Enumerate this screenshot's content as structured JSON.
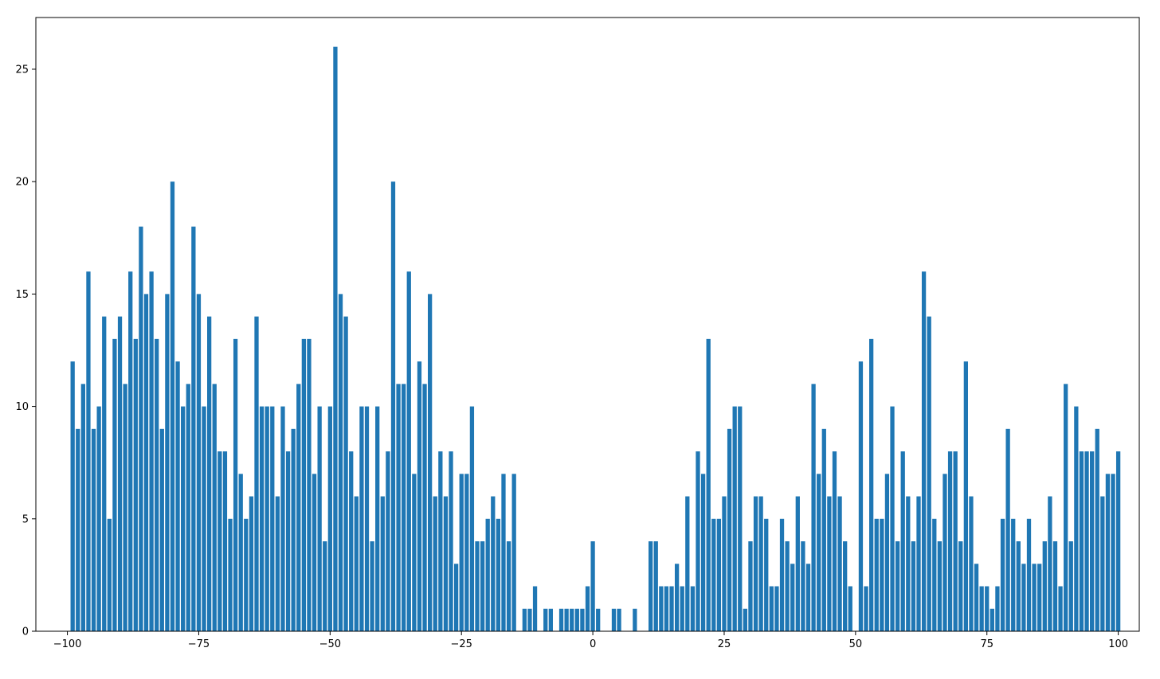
{
  "chart_data": {
    "type": "bar",
    "title": "",
    "xlabel": "",
    "ylabel": "",
    "bar_color": "#1f77b4",
    "xlim": [
      -106,
      104
    ],
    "ylim": [
      0,
      27.3
    ],
    "grid": false,
    "x_ticks": [
      {
        "value": -100,
        "label": "−100"
      },
      {
        "value": -75,
        "label": "−75"
      },
      {
        "value": -50,
        "label": "−50"
      },
      {
        "value": -25,
        "label": "−25"
      },
      {
        "value": 0,
        "label": "0"
      },
      {
        "value": 25,
        "label": "25"
      },
      {
        "value": 50,
        "label": "50"
      },
      {
        "value": 75,
        "label": "75"
      },
      {
        "value": 100,
        "label": "100"
      }
    ],
    "y_ticks": [
      {
        "value": 0,
        "label": "0"
      },
      {
        "value": 5,
        "label": "5"
      },
      {
        "value": 10,
        "label": "10"
      },
      {
        "value": 15,
        "label": "15"
      },
      {
        "value": 20,
        "label": "20"
      },
      {
        "value": 25,
        "label": "25"
      }
    ],
    "x_start": -99,
    "values": [
      12,
      9,
      11,
      16,
      9,
      10,
      14,
      5,
      13,
      14,
      11,
      16,
      13,
      18,
      15,
      16,
      13,
      9,
      15,
      20,
      12,
      10,
      11,
      18,
      15,
      10,
      14,
      11,
      8,
      8,
      5,
      13,
      7,
      5,
      6,
      14,
      10,
      10,
      10,
      6,
      10,
      8,
      9,
      11,
      13,
      13,
      7,
      10,
      4,
      10,
      26,
      15,
      14,
      8,
      6,
      10,
      10,
      4,
      10,
      6,
      8,
      20,
      11,
      11,
      16,
      7,
      12,
      11,
      15,
      6,
      8,
      6,
      8,
      3,
      7,
      7,
      10,
      4,
      4,
      5,
      6,
      5,
      7,
      4,
      7,
      0,
      1,
      1,
      2,
      0,
      1,
      1,
      0,
      1,
      1,
      1,
      1,
      1,
      2,
      4,
      1,
      0,
      0,
      1,
      1,
      0,
      0,
      1,
      0,
      0,
      4,
      4,
      2,
      2,
      2,
      3,
      2,
      6,
      2,
      8,
      7,
      13,
      5,
      5,
      6,
      9,
      10,
      10,
      1,
      4,
      6,
      6,
      5,
      2,
      2,
      5,
      4,
      3,
      6,
      4,
      3,
      11,
      7,
      9,
      6,
      8,
      6,
      4,
      2,
      0,
      12,
      2,
      13,
      5,
      5,
      7,
      10,
      4,
      8,
      6,
      4,
      6,
      16,
      14,
      5,
      4,
      7,
      8,
      8,
      4,
      12,
      6,
      3,
      2,
      2,
      1,
      2,
      5,
      9,
      5,
      4,
      3,
      5,
      3,
      3,
      4,
      6,
      4,
      2,
      11,
      4,
      10,
      8,
      8,
      8,
      9,
      6,
      7,
      7,
      8
    ]
  }
}
